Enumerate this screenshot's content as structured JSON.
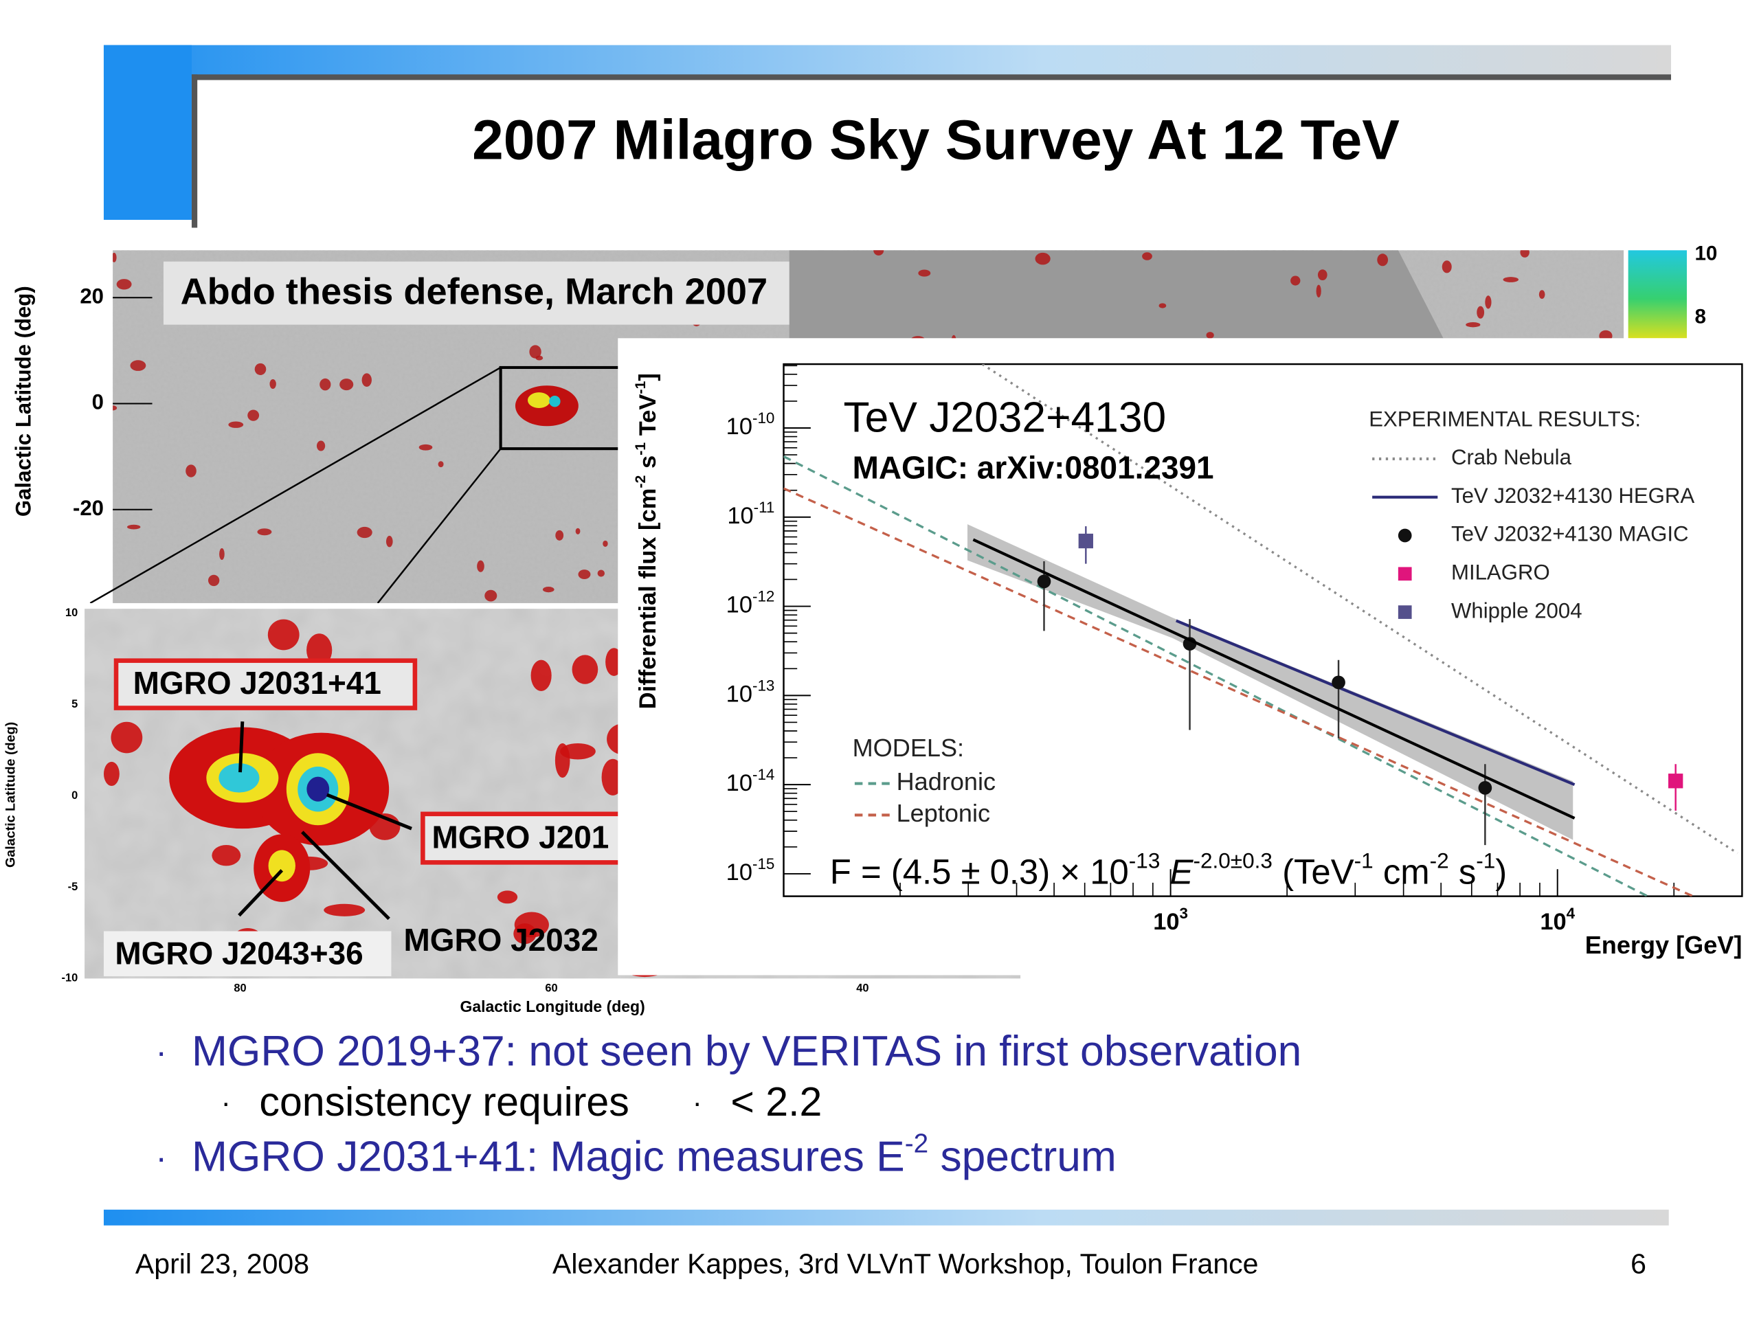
{
  "header": {
    "title": "2007 Milagro Sky Survey At 12 TeV"
  },
  "sky_map": {
    "caption": "Abdo thesis defense, March 2007",
    "y_label": "Galactic Latitude (deg)",
    "y_ticks": [
      "20",
      "0",
      "-20"
    ],
    "colorbar_ticks": [
      "10",
      "8"
    ]
  },
  "inset_map": {
    "y_label": "Galactic Latitude (deg)",
    "x_label": "Galactic Longitude (deg)",
    "y_ticks": [
      "10",
      "5",
      "0",
      "-5",
      "-10"
    ],
    "x_ticks": [
      "80",
      "60",
      "40"
    ],
    "sources": [
      "MGRO J2031+41",
      "MGRO J201",
      "MGRO J2043+36",
      "MGRO J2032"
    ]
  },
  "spectrum": {
    "type": "scatter",
    "title": "TeV J2032+4130",
    "subtitle": "MAGIC: arXiv:0801.2391",
    "y_label": [
      "Differential flux [cm",
      {
        "sup": "-2"
      },
      " s",
      {
        "sup": "-1"
      },
      " TeV",
      {
        "sup": "-1"
      },
      "]"
    ],
    "x_label": "Energy [GeV]",
    "x_log": true,
    "y_log": true,
    "xlim": [
      100,
      30000
    ],
    "ylim": [
      5.6e-16,
      5.2e-10
    ],
    "xticks": [
      {
        "value": 1000,
        "label": "10",
        "sup": "3"
      },
      {
        "value": 10000,
        "label": "10",
        "sup": "4"
      }
    ],
    "yticks": [
      {
        "value": 1e-10,
        "label": "10",
        "sup": "-10"
      },
      {
        "value": 1e-11,
        "label": "10",
        "sup": "-11"
      },
      {
        "value": 1e-12,
        "label": "10",
        "sup": "-12"
      },
      {
        "value": 1e-13,
        "label": "10",
        "sup": "-13"
      },
      {
        "value": 1e-14,
        "label": "10",
        "sup": "-14"
      },
      {
        "value": 1e-15,
        "label": "10",
        "sup": "-15"
      }
    ],
    "formula": [
      "F = (4.5 ± 0.3) × 10",
      {
        "sup": "-13"
      },
      " ",
      {
        "italic": "E"
      },
      {
        "sup": "-2.0±0.3"
      },
      " (TeV",
      {
        "sup": "-1"
      },
      " cm",
      {
        "sup": "-2"
      },
      " s",
      {
        "sup": "-1"
      },
      ")"
    ],
    "experimental": {
      "title": "EXPERIMENTAL RESULTS:",
      "series": [
        {
          "name": "Crab Nebula",
          "style": "dotted",
          "color": "#8a8a8a",
          "x": [
            326,
            29200
          ],
          "values": [
            5.2e-10,
            1.7e-15
          ]
        },
        {
          "name": "TeV J2032+4130 HEGRA",
          "style": "solid",
          "color": "#2b2b78",
          "x": [
            1034,
            11070
          ],
          "values": [
            6.9e-13,
            1e-14
          ]
        },
        {
          "name": "TeV J2032+4130 MAGIC",
          "style": "circle",
          "color": "#111111",
          "x": [
            471,
            1121,
            2717,
            6500
          ],
          "values": [
            1.9e-12,
            3.8e-13,
            1.4e-13,
            9.2e-15
          ],
          "lower": [
            5.3e-13,
            4.1e-14,
            3.3e-14,
            2.1e-15
          ],
          "upper": [
            3.2e-12,
            7.2e-13,
            2.5e-13,
            1.7e-14
          ]
        },
        {
          "name": "MILAGRO",
          "style": "square",
          "color": "#e0157c",
          "x": [
            20200
          ],
          "values": [
            1.1e-14
          ],
          "lower": [
            5.1e-15
          ],
          "upper": [
            1.7e-14
          ]
        },
        {
          "name": "Whipple 2004",
          "style": "square",
          "color": "#55508c",
          "x": [
            604
          ],
          "values": [
            5.4e-12
          ],
          "lower": [
            3e-12
          ],
          "upper": [
            7.9e-12
          ]
        }
      ]
    },
    "models": {
      "title": "MODELS:",
      "series": [
        {
          "name": "Hadronic",
          "style": "dashed",
          "color": "#5b9c8c",
          "x": [
            100,
            17100
          ],
          "values": [
            4.8e-11,
            5.6e-16
          ]
        },
        {
          "name": "Leptonic",
          "style": "dashed",
          "color": "#c4604a",
          "x": [
            100,
            22400
          ],
          "values": [
            2.1e-11,
            5.6e-16
          ]
        }
      ]
    },
    "fit": {
      "style": "solid",
      "color": "#000000",
      "x": [
        309,
        11070
      ],
      "values": [
        5.6e-12,
        4.2e-15
      ]
    }
  },
  "bullets": {
    "first": {
      "marker": "·",
      "text": "MGRO 2019+37: not seen by VERITAS in first observation"
    },
    "sub": {
      "marker": "·",
      "text": "consistency requires",
      "symbol": "·",
      "condition": "< 2.2"
    },
    "second": {
      "marker": "·",
      "text": [
        "MGRO J2031+41: Magic measures E",
        {
          "sup": "-2"
        },
        " spectrum"
      ]
    }
  },
  "footer": {
    "date": "April 23, 2008",
    "author": "Alexander Kappes, 3rd VLVnT Workshop, Toulon France",
    "page": "6"
  }
}
